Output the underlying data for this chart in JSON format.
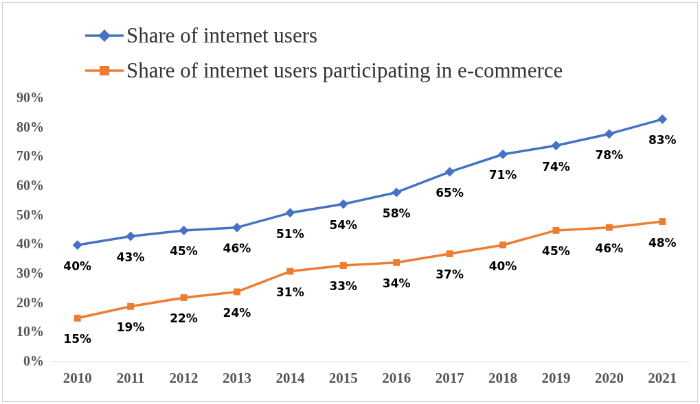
{
  "chart_data": {
    "type": "line",
    "categories": [
      "2010",
      "2011",
      "2012",
      "2013",
      "2014",
      "2015",
      "2016",
      "2017",
      "2018",
      "2019",
      "2020",
      "2021"
    ],
    "series": [
      {
        "name": "Share of internet users",
        "color": "#4472c4",
        "marker": "diamond",
        "values": [
          40,
          43,
          45,
          46,
          51,
          54,
          58,
          65,
          71,
          74,
          78,
          83
        ],
        "value_labels": [
          "40%",
          "43%",
          "45%",
          "46%",
          "51%",
          "54%",
          "58%",
          "65%",
          "71%",
          "74%",
          "78%",
          "83%"
        ]
      },
      {
        "name": "Share of internet users participating in e-commerce",
        "color": "#ed7d31",
        "marker": "square",
        "values": [
          15,
          19,
          22,
          24,
          31,
          33,
          34,
          37,
          40,
          45,
          46,
          48
        ],
        "value_labels": [
          "15%",
          "19%",
          "22%",
          "24%",
          "31%",
          "33%",
          "34%",
          "37%",
          "40%",
          "45%",
          "46%",
          "48%"
        ]
      }
    ],
    "ylim": [
      0,
      90
    ],
    "yticks": [
      {
        "value": 0,
        "label": "0%"
      },
      {
        "value": 10,
        "label": "10%"
      },
      {
        "value": 20,
        "label": "20%"
      },
      {
        "value": 30,
        "label": "30%"
      },
      {
        "value": 40,
        "label": "40%"
      },
      {
        "value": 50,
        "label": "50%"
      },
      {
        "value": 60,
        "label": "60%"
      },
      {
        "value": 70,
        "label": "70%"
      },
      {
        "value": 80,
        "label": "80%"
      },
      {
        "value": 90,
        "label": "90%"
      }
    ],
    "grid": false,
    "legend": "top left",
    "line_style": "solid"
  }
}
